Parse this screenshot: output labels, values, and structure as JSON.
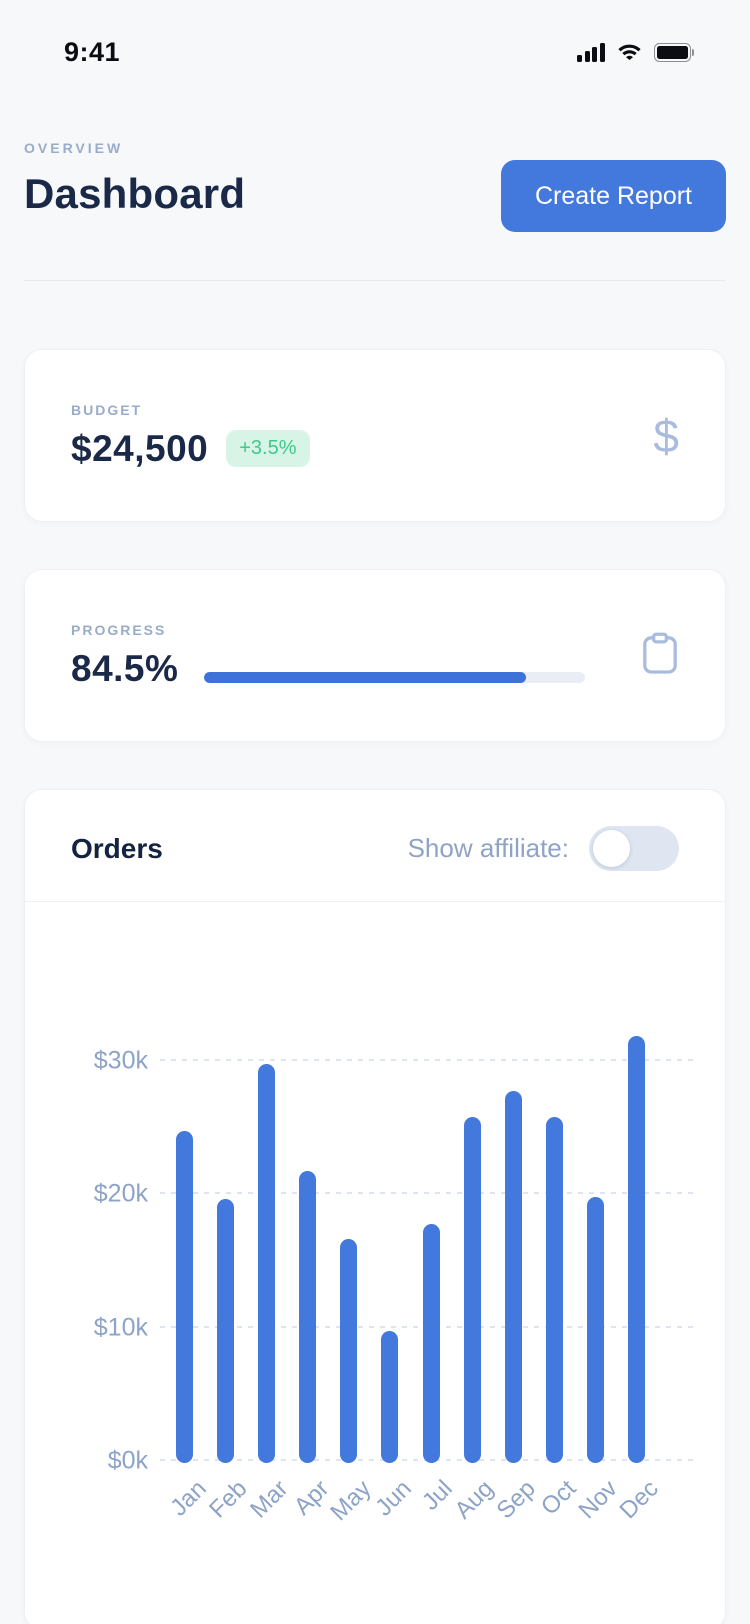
{
  "status_bar": {
    "time": "9:41",
    "icons": [
      "cellular-signal-icon",
      "wifi-icon",
      "battery-icon"
    ]
  },
  "header": {
    "eyebrow": "OVERVIEW",
    "title": "Dashboard",
    "create_report_label": "Create Report"
  },
  "budget_card": {
    "label": "BUDGET",
    "value": "$24,500",
    "delta": "+3.5%",
    "icon": "dollar-icon",
    "dollar_glyph": "$"
  },
  "progress_card": {
    "label": "PROGRESS",
    "value": "84.5%",
    "percent": 84.5,
    "icon": "clipboard-icon"
  },
  "orders_card": {
    "title": "Orders",
    "toggle_label": "Show affiliate:",
    "toggle_state": "off"
  },
  "chart_data": {
    "type": "bar",
    "title": "Orders",
    "categories": [
      "Jan",
      "Feb",
      "Mar",
      "Apr",
      "May",
      "Jun",
      "Jul",
      "Aug",
      "Sep",
      "Oct",
      "Nov",
      "Dec"
    ],
    "values": [
      24.9,
      19.8,
      29.9,
      21.9,
      16.8,
      9.9,
      17.9,
      25.9,
      27.9,
      25.9,
      19.9,
      32.0
    ],
    "unit": "thousand dollars",
    "xlabel": "",
    "ylabel": "",
    "yticks": [
      0,
      10,
      20,
      30
    ],
    "ytick_labels": [
      "$0k",
      "$10k",
      "$20k",
      "$30k"
    ],
    "ylim": [
      0,
      34.7
    ],
    "grid": "horizontal-dashed",
    "legend": "none",
    "bar_color": "#4378dc"
  },
  "colors": {
    "accent_blue": "#4378dc",
    "progress_fill": "#3d73d9",
    "badge_green_text": "#3fc98b",
    "badge_green_bg": "#d8f4e6",
    "muted_label": "#9aaccb",
    "axis_label": "#8da3c7",
    "navy_text": "#1a2947",
    "page_bg": "#f7f8fa",
    "card_bg": "#ffffff"
  }
}
